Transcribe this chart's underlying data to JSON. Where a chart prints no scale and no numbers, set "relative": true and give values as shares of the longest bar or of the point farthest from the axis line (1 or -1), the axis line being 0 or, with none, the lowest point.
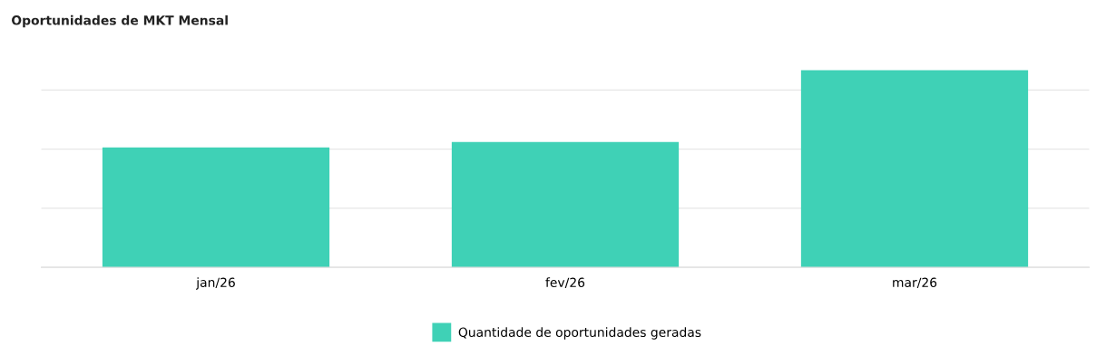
{
  "chart_data": {
    "type": "bar",
    "title": "Oportunidades de MKT Mensal",
    "categories": [
      "jan/26",
      "fev/26",
      "mar/26"
    ],
    "series": [
      {
        "name": "Quantidade de oportunidades geradas",
        "color": "#3fd1b6",
        "values": [
          0.609,
          0.636,
          1
        ]
      }
    ],
    "relative": true,
    "grid": "y",
    "legend": "bottom"
  }
}
